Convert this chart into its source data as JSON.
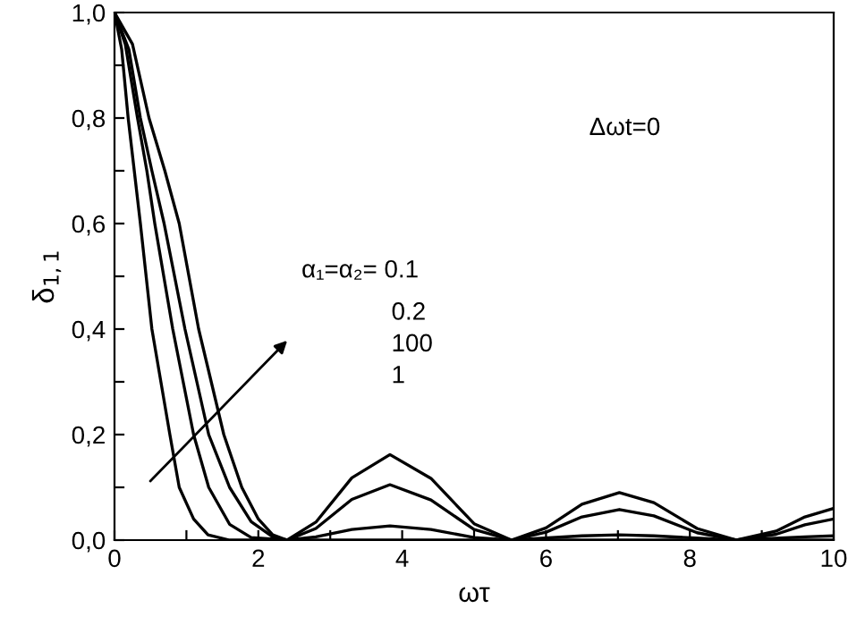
{
  "chart_data": {
    "type": "line",
    "xlabel": "ωτ",
    "ylabel": "δ$_{1,1}$",
    "annotations": [
      "Δωt=0",
      "α₁=α₂= 0.1",
      "0.2",
      "100",
      "1"
    ],
    "xlim": [
      0,
      10
    ],
    "ylim": [
      0,
      1.0
    ],
    "xticks": [
      0,
      {
        "value": 1,
        "label": null
      },
      2,
      {
        "value": 3,
        "label": null
      },
      4,
      {
        "value": 5,
        "label": null
      },
      6,
      {
        "value": 7,
        "label": null
      },
      8,
      {
        "value": 9,
        "label": null
      },
      10
    ],
    "yticks": [
      {
        "value": 0,
        "label": "0,0"
      },
      {
        "value": 0.1,
        "label": null
      },
      {
        "value": 0.2,
        "label": "0,2"
      },
      {
        "value": 0.3,
        "label": null
      },
      {
        "value": 0.4,
        "label": "0,4"
      },
      {
        "value": 0.5,
        "label": null
      },
      {
        "value": 0.6,
        "label": "0,6"
      },
      {
        "value": 0.7,
        "label": null
      },
      {
        "value": 0.8,
        "label": "0,8"
      },
      {
        "value": 0.9,
        "label": null
      },
      {
        "value": 1.0,
        "label": "1,0"
      }
    ],
    "grid": false,
    "legend": false,
    "marker": "none",
    "line_style": "solid",
    "series": [
      {
        "color": "#000000",
        "x": [
          0,
          0.25,
          0.48,
          0.7,
          0.9,
          1.17,
          1.52,
          1.77,
          2.0,
          2.2,
          2.4,
          2.8,
          3.3,
          3.83,
          4.4,
          5.0,
          5.52,
          6.0,
          6.5,
          7.02,
          7.5,
          8.1,
          8.65,
          9.2,
          9.6,
          10
        ],
        "values": [
          1,
          0.94,
          0.8,
          0.7,
          0.6,
          0.4,
          0.2,
          0.1,
          0.04,
          0.01,
          0,
          0.034,
          0.118,
          0.162,
          0.117,
          0.031,
          0,
          0.023,
          0.068,
          0.09,
          0.071,
          0.022,
          0,
          0.017,
          0.044,
          0.06
        ]
      },
      {
        "color": "#000000",
        "x": [
          0,
          0.2,
          0.36,
          0.52,
          0.69,
          0.98,
          1.31,
          1.6,
          1.9,
          2.2,
          2.4,
          2.8,
          3.3,
          3.83,
          4.4,
          5.0,
          5.52,
          6.0,
          6.5,
          7.02,
          7.5,
          8.1,
          8.65,
          9.2,
          9.6,
          10
        ],
        "values": [
          1,
          0.93,
          0.8,
          0.7,
          0.6,
          0.4,
          0.2,
          0.1,
          0.035,
          0.006,
          0,
          0.022,
          0.077,
          0.105,
          0.076,
          0.02,
          0,
          0.015,
          0.044,
          0.058,
          0.046,
          0.014,
          0,
          0.011,
          0.029,
          0.04
        ]
      },
      {
        "color": "#000000",
        "x": [
          0,
          0.15,
          0.32,
          0.45,
          0.56,
          0.81,
          1.1,
          1.31,
          1.6,
          1.9,
          2.4,
          2.8,
          3.3,
          3.83,
          4.4,
          5.0,
          5.52,
          6.5,
          7.02,
          7.5,
          8.65,
          9.6,
          10
        ],
        "values": [
          1,
          0.94,
          0.8,
          0.7,
          0.6,
          0.4,
          0.2,
          0.1,
          0.03,
          0.005,
          0,
          0.006,
          0.02,
          0.027,
          0.02,
          0.005,
          0,
          0.008,
          0.01,
          0.008,
          0,
          0.006,
          0.008
        ]
      },
      {
        "color": "#000000",
        "x": [
          0,
          0.1,
          0.19,
          0.36,
          0.52,
          0.77,
          0.9,
          1.1,
          1.3,
          1.6,
          2.0,
          10
        ],
        "values": [
          1,
          0.93,
          0.8,
          0.6,
          0.4,
          0.2,
          0.1,
          0.04,
          0.01,
          0,
          0,
          0
        ]
      }
    ]
  }
}
